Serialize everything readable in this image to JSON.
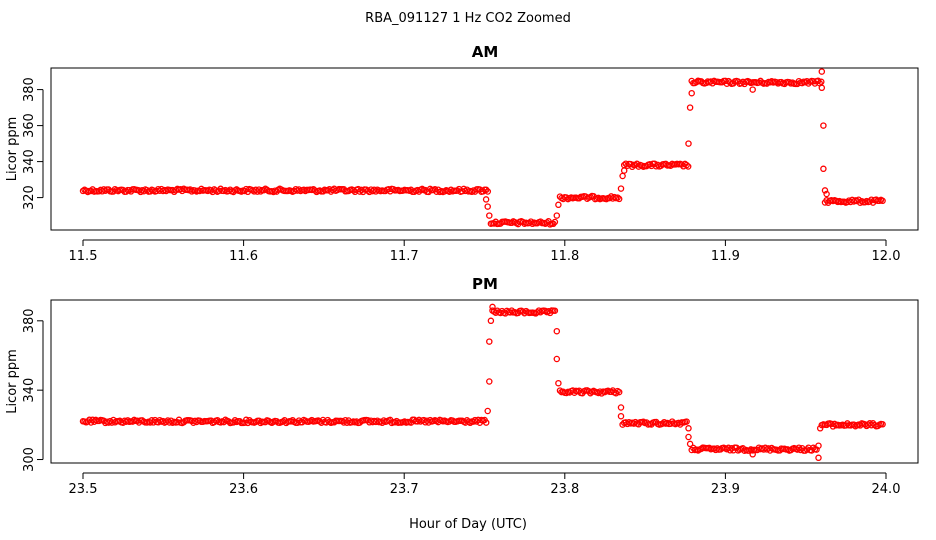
{
  "figure": {
    "title": "RBA_091127  1 Hz CO2 Zoomed",
    "xlabel": "Hour of Day (UTC)",
    "point_color": "#ff0000",
    "marker": "open-circle"
  },
  "chart_data": [
    {
      "type": "scatter",
      "title": "AM",
      "xlabel": "",
      "ylabel": "Licor ppm",
      "xlim": [
        11.5,
        12.0
      ],
      "ylim": [
        302,
        392
      ],
      "xticks": [
        "11.5",
        "11.6",
        "11.7",
        "11.8",
        "11.9",
        "12.0"
      ],
      "yticks": [
        "320",
        "340",
        "360",
        "380"
      ],
      "levels": [
        {
          "x_start": 11.5,
          "x_end": 11.753,
          "y": 324
        },
        {
          "x_start": 11.754,
          "x_end": 11.794,
          "y": 306
        },
        {
          "x_start": 11.797,
          "x_end": 11.834,
          "y": 320
        },
        {
          "x_start": 11.837,
          "x_end": 11.877,
          "y": 338
        },
        {
          "x_start": 11.879,
          "x_end": 11.96,
          "y": 384
        },
        {
          "x_start": 11.962,
          "x_end": 11.998,
          "y": 318
        }
      ],
      "transitions": [
        {
          "x": 11.751,
          "y": 319
        },
        {
          "x": 11.752,
          "y": 315
        },
        {
          "x": 11.753,
          "y": 310
        },
        {
          "x": 11.795,
          "y": 310
        },
        {
          "x": 11.796,
          "y": 316
        },
        {
          "x": 11.835,
          "y": 325
        },
        {
          "x": 11.836,
          "y": 332
        },
        {
          "x": 11.837,
          "y": 335
        },
        {
          "x": 11.877,
          "y": 350
        },
        {
          "x": 11.878,
          "y": 370
        },
        {
          "x": 11.879,
          "y": 378
        },
        {
          "x": 11.96,
          "y": 390
        },
        {
          "x": 11.96,
          "y": 381
        },
        {
          "x": 11.961,
          "y": 360
        },
        {
          "x": 11.961,
          "y": 336
        },
        {
          "x": 11.962,
          "y": 324
        },
        {
          "x": 11.963,
          "y": 322
        },
        {
          "x": 11.917,
          "y": 380
        }
      ]
    },
    {
      "type": "scatter",
      "title": "PM",
      "xlabel": "Hour of Day (UTC)",
      "ylabel": "Licor ppm",
      "xlim": [
        23.5,
        24.0
      ],
      "ylim": [
        298,
        392
      ],
      "xticks": [
        "23.5",
        "23.6",
        "23.7",
        "23.8",
        "23.9",
        "24.0"
      ],
      "yticks": [
        "300",
        "340",
        "380"
      ],
      "levels": [
        {
          "x_start": 23.5,
          "x_end": 23.752,
          "y": 322
        },
        {
          "x_start": 23.755,
          "x_end": 23.794,
          "y": 385
        },
        {
          "x_start": 23.797,
          "x_end": 23.834,
          "y": 339
        },
        {
          "x_start": 23.836,
          "x_end": 23.876,
          "y": 321
        },
        {
          "x_start": 23.879,
          "x_end": 23.957,
          "y": 306
        },
        {
          "x_start": 23.96,
          "x_end": 23.998,
          "y": 320
        }
      ],
      "transitions": [
        {
          "x": 23.752,
          "y": 328
        },
        {
          "x": 23.753,
          "y": 345
        },
        {
          "x": 23.753,
          "y": 368
        },
        {
          "x": 23.754,
          "y": 380
        },
        {
          "x": 23.755,
          "y": 388
        },
        {
          "x": 23.795,
          "y": 374
        },
        {
          "x": 23.795,
          "y": 358
        },
        {
          "x": 23.796,
          "y": 344
        },
        {
          "x": 23.835,
          "y": 330
        },
        {
          "x": 23.835,
          "y": 325
        },
        {
          "x": 23.877,
          "y": 318
        },
        {
          "x": 23.877,
          "y": 313
        },
        {
          "x": 23.878,
          "y": 309
        },
        {
          "x": 23.958,
          "y": 308
        },
        {
          "x": 23.958,
          "y": 301
        },
        {
          "x": 23.959,
          "y": 318
        },
        {
          "x": 23.917,
          "y": 303
        }
      ]
    }
  ]
}
